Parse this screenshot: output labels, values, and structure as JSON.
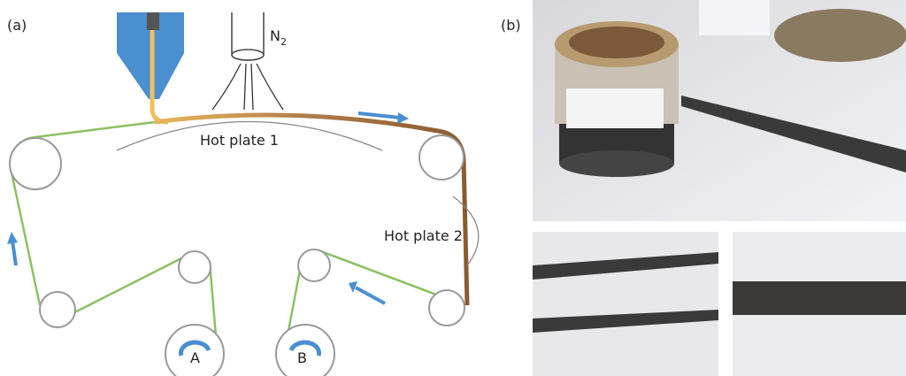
{
  "panels": {
    "a": {
      "label": "(a)",
      "gas": {
        "base": "N",
        "sub": "2"
      },
      "hot_plate_1": "Hot plate 1",
      "hot_plate_2": "Hot plate 2",
      "spools": [
        "A",
        "B"
      ]
    },
    "b": {
      "label": "(b)"
    }
  }
}
